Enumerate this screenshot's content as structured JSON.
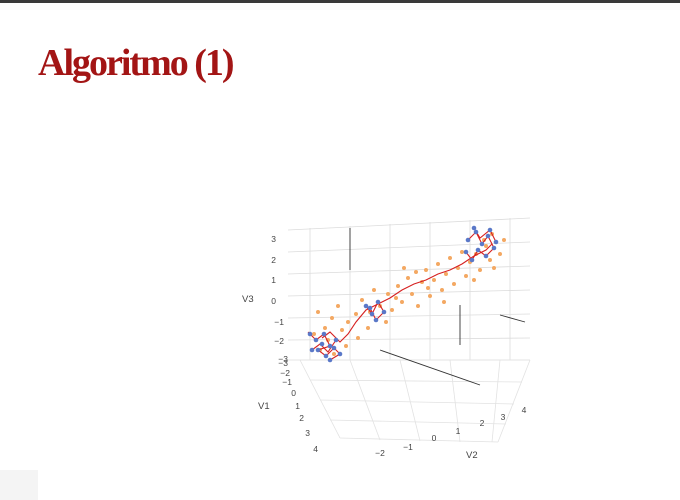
{
  "slide": {
    "title": "Algoritmo (1)"
  },
  "plot3d": {
    "axis_v3_label": "V3",
    "axis_v1_label": "V1",
    "axis_v2_label": "V2",
    "v3_ticks": [
      "3",
      "2",
      "1",
      "0",
      "−1",
      "−2",
      "−3"
    ],
    "v1_ticks": [
      "−3",
      "−2",
      "−1",
      "0",
      "1",
      "2",
      "3",
      "4"
    ],
    "v2_ticks": [
      "−2",
      "−1",
      "0",
      "1",
      "2",
      "3",
      "4"
    ],
    "colors": {
      "background_points": "#f4a862",
      "cluster_points": "#5a78c8",
      "path_lines": "#d62020",
      "title": "#a31515"
    }
  }
}
